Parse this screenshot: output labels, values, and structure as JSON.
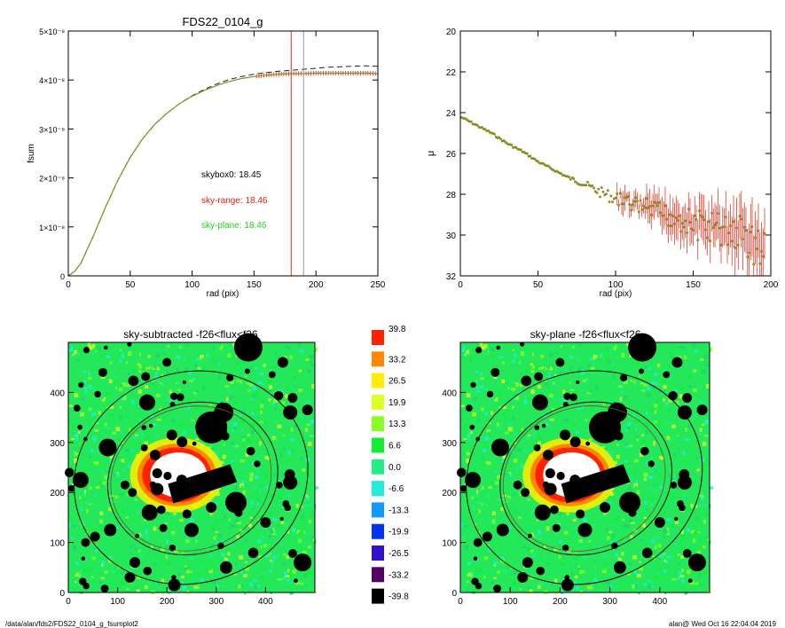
{
  "footer": {
    "left": "/data/alan/fds2/FDS22_0104_g_fsumplot2",
    "right": "alan@  Wed Oct 16 22:04:04 2019"
  },
  "colors": {
    "curve_black": "#222222",
    "curve_red": "#e02010",
    "curve_green": "#22cc22",
    "curve_olive": "#8a8a20",
    "vline_red": "#e03020",
    "vline_gray": "#999999"
  },
  "chart_data": [
    {
      "type": "line",
      "title": "FDS22_0104_g",
      "xlabel": "rad (pix)",
      "ylabel": "fsum",
      "xlim": [
        0,
        250
      ],
      "ylim": [
        0,
        5e-08
      ],
      "x_ticks": [
        "0",
        "50",
        "100",
        "150",
        "200",
        "250"
      ],
      "y_ticks": [
        "0",
        "1×10⁻⁸",
        "2×10⁻⁸",
        "3×10⁻⁸",
        "4×10⁻⁸",
        "5×10⁻⁸"
      ],
      "annotations": [
        "skybox0: 18.45",
        "sky-range: 18.46",
        "sky-plane: 18.46"
      ],
      "vertical_lines": [
        180,
        190
      ],
      "x": [
        0,
        5,
        10,
        20,
        30,
        40,
        50,
        60,
        70,
        80,
        90,
        100,
        110,
        120,
        130,
        140,
        150,
        160,
        170,
        180,
        190,
        200,
        210,
        220,
        230,
        240,
        250
      ],
      "series": [
        {
          "style": "dashed",
          "color": "black",
          "values": [
            0,
            0.09,
            0.25,
            0.8,
            1.4,
            1.95,
            2.42,
            2.8,
            3.1,
            3.33,
            3.52,
            3.68,
            3.81,
            3.92,
            4.01,
            4.07,
            4.12,
            4.15,
            4.18,
            4.2,
            4.22,
            4.24,
            4.26,
            4.27,
            4.28,
            4.29,
            4.28
          ]
        },
        {
          "style": "points",
          "color": "red",
          "values": [
            0,
            0.09,
            0.25,
            0.8,
            1.4,
            1.95,
            2.42,
            2.8,
            3.1,
            3.33,
            3.52,
            3.67,
            3.79,
            3.89,
            3.97,
            4.03,
            4.07,
            4.1,
            4.12,
            4.13,
            4.13,
            4.14,
            4.14,
            4.14,
            4.14,
            4.14,
            4.13
          ]
        },
        {
          "style": "solid",
          "color": "green",
          "values": [
            0,
            0.09,
            0.25,
            0.8,
            1.4,
            1.95,
            2.42,
            2.8,
            3.1,
            3.33,
            3.52,
            3.67,
            3.79,
            3.89,
            3.97,
            4.03,
            4.07,
            4.1,
            4.12,
            4.13,
            4.13,
            4.14,
            4.14,
            4.14,
            4.14,
            4.14,
            4.13
          ]
        }
      ]
    },
    {
      "type": "scatter",
      "xlabel": "rad (pix)",
      "ylabel": "μ",
      "xlim": [
        0,
        200
      ],
      "ylim": [
        32,
        20
      ],
      "x_ticks": [
        "0",
        "50",
        "100",
        "150",
        "200"
      ],
      "y_ticks": [
        "20",
        "22",
        "24",
        "26",
        "28",
        "30",
        "32"
      ],
      "x": [
        0,
        10,
        20,
        30,
        40,
        50,
        60,
        70,
        80,
        90,
        100,
        110,
        120,
        130,
        140,
        150,
        160,
        170,
        180,
        190
      ],
      "values": [
        24.2,
        24.6,
        25.0,
        25.5,
        25.9,
        26.4,
        26.8,
        27.2,
        27.5,
        27.9,
        28.2,
        28.5,
        28.7,
        29.0,
        29.1,
        29.5,
        29.6,
        29.8,
        29.9,
        30.5
      ]
    },
    {
      "type": "heatmap",
      "title": "sky-subtracted -f26<flux<f26",
      "xlim": [
        0,
        500
      ],
      "ylim": [
        0,
        500
      ],
      "x_ticks": [
        "0",
        "100",
        "200",
        "300",
        "400"
      ],
      "y_ticks": [
        "0",
        "100",
        "200",
        "300",
        "400"
      ]
    },
    {
      "type": "heatmap",
      "title": "sky-plane -f26<flux<f26",
      "xlim": [
        0,
        500
      ],
      "ylim": [
        0,
        500
      ],
      "x_ticks": [
        "0",
        "100",
        "200",
        "300",
        "400"
      ],
      "y_ticks": [
        "0",
        "100",
        "200",
        "300",
        "400"
      ]
    },
    {
      "type": "colorbar",
      "labels": [
        "39.8",
        "33.2",
        "26.5",
        "19.9",
        "13.3",
        "6.6",
        "0.0",
        "-6.6",
        "-13.3",
        "-19.9",
        "-26.5",
        "-33.2",
        "-39.8"
      ],
      "colors": [
        "#ff2200",
        "#ff8800",
        "#ffee00",
        "#ddff22",
        "#88ff22",
        "#11ee33",
        "#22ee88",
        "#22eedd",
        "#1199ff",
        "#0033ee",
        "#3311cc",
        "#550066",
        "#000000"
      ]
    }
  ]
}
